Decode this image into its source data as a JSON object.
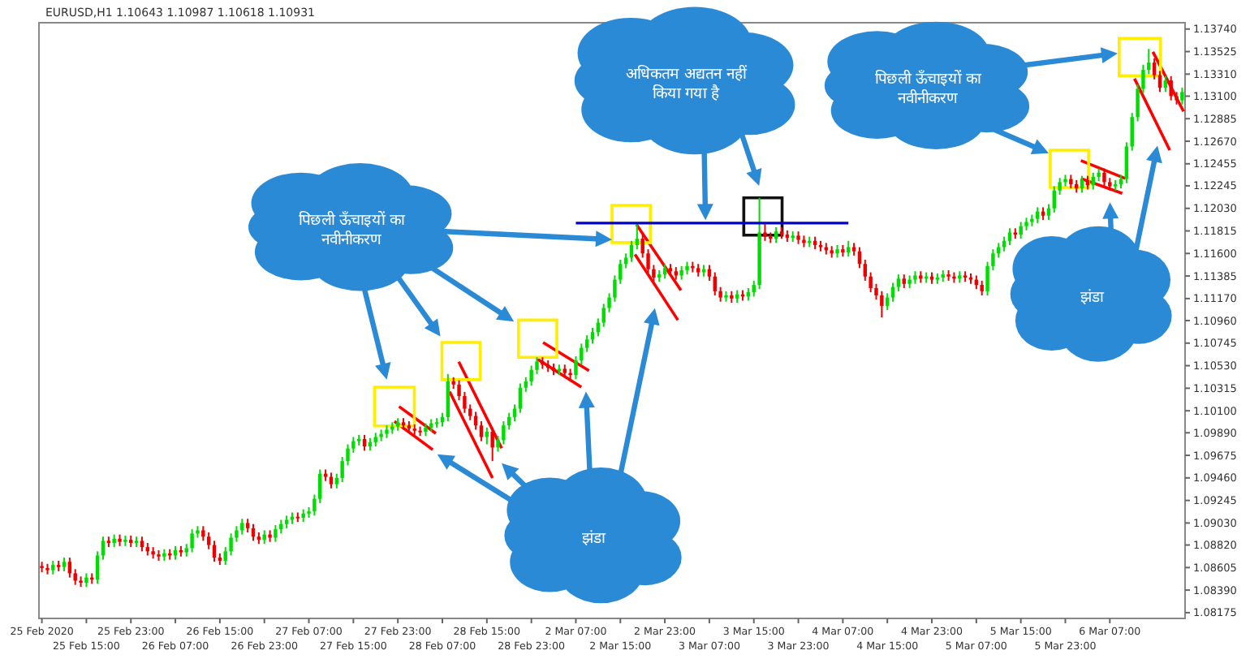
{
  "chart_data": {
    "type": "candlestick",
    "title": "EURUSD,H1  1.10643 1.10987 1.10618 1.10931",
    "categories": [
      "25 Feb 2020",
      null,
      null,
      null,
      null,
      null,
      null,
      null,
      "25 Feb 15:00",
      null,
      null,
      null,
      null,
      null,
      null,
      null,
      "25 Feb 23:00",
      null,
      null,
      null,
      null,
      null,
      null,
      null,
      "26 Feb 07:00",
      null,
      null,
      null,
      null,
      null,
      null,
      null,
      "26 Feb 15:00",
      null,
      null,
      null,
      null,
      null,
      null,
      null,
      "26 Feb 23:00",
      null,
      null,
      null,
      null,
      null,
      null,
      null,
      "27 Feb 07:00",
      null,
      null,
      null,
      null,
      null,
      null,
      null,
      "27 Feb 15:00",
      null,
      null,
      null,
      null,
      null,
      null,
      null,
      "27 Feb 23:00",
      null,
      null,
      null,
      null,
      null,
      null,
      null,
      "28 Feb 07:00",
      null,
      null,
      null,
      null,
      null,
      null,
      null,
      "28 Feb 15:00",
      null,
      null,
      null,
      null,
      null,
      null,
      null,
      "28 Feb 23:00",
      null,
      null,
      null,
      null,
      null,
      null,
      null,
      "2 Mar 07:00",
      null,
      null,
      null,
      null,
      null,
      null,
      null,
      "2 Mar 15:00",
      null,
      null,
      null,
      null,
      null,
      null,
      null,
      "2 Mar 23:00",
      null,
      null,
      null,
      null,
      null,
      null,
      null,
      "3 Mar 07:00",
      null,
      null,
      null,
      null,
      null,
      null,
      null,
      "3 Mar 15:00",
      null,
      null,
      null,
      null,
      null,
      null,
      null,
      "3 Mar 23:00",
      null,
      null,
      null,
      null,
      null,
      null,
      null,
      "4 Mar 07:00",
      null,
      null,
      null,
      null,
      null,
      null,
      null,
      "4 Mar 15:00",
      null,
      null,
      null,
      null,
      null,
      null,
      null,
      "4 Mar 23:00",
      null,
      null,
      null,
      null,
      null,
      null,
      null,
      "5 Mar 07:00",
      null,
      null,
      null,
      null,
      null,
      null,
      null,
      "5 Mar 15:00",
      null,
      null,
      null,
      null,
      null,
      null,
      null,
      "5 Mar 23:00",
      null,
      null,
      null,
      null,
      null,
      null,
      null,
      "6 Mar 07:00",
      null,
      null,
      null,
      null,
      null,
      null,
      null,
      null,
      null,
      null,
      null,
      null,
      null
    ],
    "ohlc": [
      [
        1.0862,
        1.0866,
        1.0856,
        1.086
      ],
      [
        1.086,
        1.0864,
        1.0854,
        1.0858
      ],
      [
        1.0858,
        1.0867,
        1.0854,
        1.0863
      ],
      [
        1.0863,
        1.0867,
        1.0857,
        1.0861
      ],
      [
        1.0861,
        1.087,
        1.0857,
        1.0866
      ],
      [
        1.0866,
        1.087,
        1.0851,
        1.0855
      ],
      [
        1.0855,
        1.0859,
        1.0844,
        1.0848
      ],
      [
        1.0848,
        1.0852,
        1.0842,
        1.0846
      ],
      [
        1.0846,
        1.0855,
        1.0842,
        1.0851
      ],
      [
        1.0851,
        1.0855,
        1.0845,
        1.0849
      ],
      [
        1.0849,
        1.0876,
        1.0845,
        1.0872
      ],
      [
        1.0872,
        1.089,
        1.0868,
        1.0886
      ],
      [
        1.0886,
        1.089,
        1.088,
        1.0884
      ],
      [
        1.0884,
        1.0892,
        1.088,
        1.0888
      ],
      [
        1.0888,
        1.0892,
        1.0881,
        1.0885
      ],
      [
        1.0885,
        1.0891,
        1.0881,
        1.0887
      ],
      [
        1.0887,
        1.0891,
        1.088,
        1.0884
      ],
      [
        1.0884,
        1.089,
        1.088,
        1.0886
      ],
      [
        1.0886,
        1.089,
        1.0876,
        1.088
      ],
      [
        1.088,
        1.0884,
        1.0872,
        1.0876
      ],
      [
        1.0876,
        1.088,
        1.0869,
        1.0873
      ],
      [
        1.0873,
        1.0877,
        1.0867,
        1.0871
      ],
      [
        1.0871,
        1.0878,
        1.0867,
        1.0874
      ],
      [
        1.0874,
        1.0878,
        1.0868,
        1.0872
      ],
      [
        1.0872,
        1.0881,
        1.0868,
        1.0877
      ],
      [
        1.0877,
        1.0881,
        1.0871,
        1.0875
      ],
      [
        1.0875,
        1.0883,
        1.0871,
        1.0879
      ],
      [
        1.0879,
        1.0897,
        1.0875,
        1.0893
      ],
      [
        1.0893,
        1.09,
        1.0889,
        1.0896
      ],
      [
        1.0896,
        1.09,
        1.0886,
        1.089
      ],
      [
        1.089,
        1.0894,
        1.0878,
        1.0882
      ],
      [
        1.0882,
        1.0886,
        1.0866,
        1.087
      ],
      [
        1.087,
        1.0874,
        1.0863,
        1.0867
      ],
      [
        1.0867,
        1.088,
        1.0863,
        1.0876
      ],
      [
        1.0876,
        1.0893,
        1.0872,
        1.0889
      ],
      [
        1.0889,
        1.09,
        1.0885,
        1.0896
      ],
      [
        1.0896,
        1.0907,
        1.0892,
        1.0903
      ],
      [
        1.0903,
        1.0907,
        1.0894,
        1.0898
      ],
      [
        1.0898,
        1.0902,
        1.0886,
        1.089
      ],
      [
        1.089,
        1.0894,
        1.0883,
        1.0887
      ],
      [
        1.0887,
        1.0896,
        1.0883,
        1.0892
      ],
      [
        1.0892,
        1.0896,
        1.0885,
        1.0889
      ],
      [
        1.0889,
        1.0901,
        1.0885,
        1.0897
      ],
      [
        1.0897,
        1.0906,
        1.0893,
        1.0902
      ],
      [
        1.0902,
        1.091,
        1.0898,
        1.0906
      ],
      [
        1.0906,
        1.0913,
        1.0902,
        1.0909
      ],
      [
        1.0909,
        1.0913,
        1.0904,
        1.0908
      ],
      [
        1.0908,
        1.0916,
        1.0904,
        1.0912
      ],
      [
        1.0912,
        1.0918,
        1.0908,
        1.0914
      ],
      [
        1.0914,
        1.093,
        1.091,
        1.0926
      ],
      [
        1.0926,
        1.0954,
        1.0922,
        1.095
      ],
      [
        1.095,
        1.0954,
        1.0943,
        1.0947
      ],
      [
        1.0947,
        1.0951,
        1.0936,
        1.094
      ],
      [
        1.094,
        1.095,
        1.0936,
        1.0946
      ],
      [
        1.0946,
        1.0966,
        1.0942,
        1.0962
      ],
      [
        1.0962,
        1.0978,
        1.0958,
        1.0974
      ],
      [
        1.0974,
        1.0985,
        1.097,
        1.0981
      ],
      [
        1.0981,
        1.0987,
        1.0977,
        1.0983
      ],
      [
        1.0983,
        1.0987,
        1.0972,
        1.0976
      ],
      [
        1.0976,
        1.0984,
        1.0972,
        1.098
      ],
      [
        1.098,
        1.0989,
        1.0976,
        1.0985
      ],
      [
        1.0985,
        1.0992,
        1.0981,
        1.0988
      ],
      [
        1.0988,
        1.0996,
        1.0984,
        1.0992
      ],
      [
        1.0992,
        1.0999,
        1.0988,
        1.0995
      ],
      [
        1.0995,
        1.1003,
        1.0991,
        1.0999
      ],
      [
        1.0999,
        1.1003,
        1.0992,
        1.0996
      ],
      [
        1.0996,
        1.1,
        1.0989,
        1.0993
      ],
      [
        1.0993,
        1.0997,
        1.0987,
        1.0991
      ],
      [
        1.0991,
        1.0995,
        1.0986,
        1.099
      ],
      [
        1.099,
        1.0998,
        1.0986,
        1.0994
      ],
      [
        1.0994,
        1.1002,
        1.099,
        1.0998
      ],
      [
        1.0998,
        1.1003,
        1.0994,
        1.0999
      ],
      [
        1.0999,
        1.1008,
        1.0995,
        1.1004
      ],
      [
        1.1004,
        1.1045,
        1.1,
        1.1038
      ],
      [
        1.1038,
        1.1042,
        1.1031,
        1.1035
      ],
      [
        1.1035,
        1.1039,
        1.102,
        1.1024
      ],
      [
        1.1024,
        1.1028,
        1.1008,
        1.1012
      ],
      [
        1.1012,
        1.1016,
        1.1001,
        1.1005
      ],
      [
        1.1005,
        1.1009,
        1.0992,
        1.0996
      ],
      [
        1.0996,
        1.1,
        1.0981,
        1.0985
      ],
      [
        1.0985,
        1.0994,
        1.0978,
        1.099
      ],
      [
        1.099,
        1.0994,
        1.0962,
        1.0975
      ],
      [
        1.0975,
        1.0986,
        1.0971,
        1.0982
      ],
      [
        1.0982,
        1.1,
        1.0978,
        1.0996
      ],
      [
        1.0996,
        1.1008,
        1.0992,
        1.1004
      ],
      [
        1.1004,
        1.1016,
        1.1,
        1.1012
      ],
      [
        1.1012,
        1.1036,
        1.1008,
        1.1032
      ],
      [
        1.1032,
        1.1042,
        1.1028,
        1.1038
      ],
      [
        1.1038,
        1.1053,
        1.1034,
        1.1049
      ],
      [
        1.1049,
        1.1061,
        1.1045,
        1.1057
      ],
      [
        1.1057,
        1.1061,
        1.105,
        1.1054
      ],
      [
        1.1054,
        1.1058,
        1.1047,
        1.1051
      ],
      [
        1.1051,
        1.1055,
        1.1044,
        1.1048
      ],
      [
        1.1048,
        1.1054,
        1.1044,
        1.105
      ],
      [
        1.105,
        1.1054,
        1.1042,
        1.1046
      ],
      [
        1.1046,
        1.105,
        1.104,
        1.1044
      ],
      [
        1.1044,
        1.1062,
        1.104,
        1.1058
      ],
      [
        1.1058,
        1.1074,
        1.1054,
        1.107
      ],
      [
        1.107,
        1.1082,
        1.1066,
        1.1078
      ],
      [
        1.1078,
        1.1089,
        1.1074,
        1.1085
      ],
      [
        1.1085,
        1.1098,
        1.1081,
        1.1094
      ],
      [
        1.1094,
        1.1112,
        1.109,
        1.1108
      ],
      [
        1.1108,
        1.1122,
        1.1104,
        1.1118
      ],
      [
        1.1118,
        1.1139,
        1.1114,
        1.1135
      ],
      [
        1.1135,
        1.1154,
        1.1131,
        1.115
      ],
      [
        1.115,
        1.116,
        1.1146,
        1.1156
      ],
      [
        1.1156,
        1.1172,
        1.1152,
        1.1168
      ],
      [
        1.1168,
        1.1189,
        1.1164,
        1.1174
      ],
      [
        1.1174,
        1.1178,
        1.1156,
        1.116
      ],
      [
        1.116,
        1.1164,
        1.1141,
        1.1145
      ],
      [
        1.1145,
        1.1149,
        1.1133,
        1.1137
      ],
      [
        1.1137,
        1.1144,
        1.1133,
        1.114
      ],
      [
        1.114,
        1.115,
        1.1136,
        1.1146
      ],
      [
        1.1146,
        1.115,
        1.1139,
        1.1143
      ],
      [
        1.1143,
        1.1147,
        1.1135,
        1.1139
      ],
      [
        1.1139,
        1.1148,
        1.1135,
        1.1144
      ],
      [
        1.1144,
        1.1152,
        1.114,
        1.1148
      ],
      [
        1.1148,
        1.1152,
        1.1142,
        1.1146
      ],
      [
        1.1146,
        1.115,
        1.1138,
        1.1142
      ],
      [
        1.1142,
        1.1149,
        1.1138,
        1.1145
      ],
      [
        1.1145,
        1.1149,
        1.1134,
        1.1138
      ],
      [
        1.1138,
        1.1142,
        1.112,
        1.1124
      ],
      [
        1.1124,
        1.1128,
        1.1114,
        1.1118
      ],
      [
        1.1118,
        1.1124,
        1.1114,
        1.112
      ],
      [
        1.112,
        1.1124,
        1.1113,
        1.1117
      ],
      [
        1.1117,
        1.1125,
        1.1113,
        1.1121
      ],
      [
        1.1121,
        1.1125,
        1.1115,
        1.1119
      ],
      [
        1.1119,
        1.1127,
        1.1115,
        1.1123
      ],
      [
        1.1123,
        1.1134,
        1.1119,
        1.113
      ],
      [
        1.113,
        1.1213,
        1.1126,
        1.118
      ],
      [
        1.118,
        1.1188,
        1.1172,
        1.1176
      ],
      [
        1.1176,
        1.118,
        1.117,
        1.1174
      ],
      [
        1.1174,
        1.1185,
        1.117,
        1.1181
      ],
      [
        1.1181,
        1.1185,
        1.1174,
        1.1178
      ],
      [
        1.1178,
        1.1182,
        1.1171,
        1.1175
      ],
      [
        1.1175,
        1.1181,
        1.1171,
        1.1177
      ],
      [
        1.1177,
        1.1181,
        1.1169,
        1.1173
      ],
      [
        1.1173,
        1.1177,
        1.1166,
        1.117
      ],
      [
        1.117,
        1.1176,
        1.1166,
        1.1172
      ],
      [
        1.1172,
        1.1176,
        1.1164,
        1.1168
      ],
      [
        1.1168,
        1.1172,
        1.1162,
        1.1166
      ],
      [
        1.1166,
        1.117,
        1.1159,
        1.1163
      ],
      [
        1.1163,
        1.1167,
        1.1156,
        1.116
      ],
      [
        1.116,
        1.1168,
        1.1156,
        1.1164
      ],
      [
        1.1164,
        1.1168,
        1.1157,
        1.1161
      ],
      [
        1.1161,
        1.1172,
        1.1157,
        1.1166
      ],
      [
        1.1166,
        1.117,
        1.1158,
        1.1162
      ],
      [
        1.1162,
        1.1166,
        1.1146,
        1.115
      ],
      [
        1.115,
        1.1154,
        1.1134,
        1.1138
      ],
      [
        1.1138,
        1.1142,
        1.1123,
        1.1127
      ],
      [
        1.1127,
        1.1131,
        1.1116,
        1.112
      ],
      [
        1.112,
        1.1124,
        1.1099,
        1.111
      ],
      [
        1.111,
        1.1122,
        1.1106,
        1.1118
      ],
      [
        1.1118,
        1.1132,
        1.1114,
        1.1128
      ],
      [
        1.1128,
        1.114,
        1.1124,
        1.1136
      ],
      [
        1.1136,
        1.114,
        1.1127,
        1.1131
      ],
      [
        1.1131,
        1.1139,
        1.1127,
        1.1135
      ],
      [
        1.1135,
        1.1143,
        1.1131,
        1.1139
      ],
      [
        1.1139,
        1.1143,
        1.1132,
        1.1136
      ],
      [
        1.1136,
        1.1142,
        1.1132,
        1.1138
      ],
      [
        1.1138,
        1.1142,
        1.1131,
        1.1135
      ],
      [
        1.1135,
        1.1141,
        1.1131,
        1.1137
      ],
      [
        1.1137,
        1.1144,
        1.1133,
        1.114
      ],
      [
        1.114,
        1.1144,
        1.1134,
        1.1138
      ],
      [
        1.1138,
        1.1142,
        1.1132,
        1.1136
      ],
      [
        1.1136,
        1.1143,
        1.1132,
        1.1139
      ],
      [
        1.1139,
        1.1143,
        1.1133,
        1.1137
      ],
      [
        1.1137,
        1.1141,
        1.1131,
        1.1135
      ],
      [
        1.1135,
        1.1139,
        1.1126,
        1.113
      ],
      [
        1.113,
        1.1134,
        1.112,
        1.1124
      ],
      [
        1.1124,
        1.1152,
        1.112,
        1.1148
      ],
      [
        1.1148,
        1.1164,
        1.1144,
        1.116
      ],
      [
        1.116,
        1.117,
        1.1156,
        1.1166
      ],
      [
        1.1166,
        1.1176,
        1.1162,
        1.1172
      ],
      [
        1.1172,
        1.1184,
        1.1168,
        1.118
      ],
      [
        1.118,
        1.1184,
        1.1174,
        1.1178
      ],
      [
        1.1178,
        1.119,
        1.1174,
        1.1186
      ],
      [
        1.1186,
        1.1194,
        1.1182,
        1.119
      ],
      [
        1.119,
        1.1197,
        1.1186,
        1.1193
      ],
      [
        1.1193,
        1.1204,
        1.1189,
        1.12
      ],
      [
        1.12,
        1.1204,
        1.1192,
        1.1196
      ],
      [
        1.1196,
        1.1207,
        1.1192,
        1.1203
      ],
      [
        1.1203,
        1.1224,
        1.1199,
        1.122
      ],
      [
        1.122,
        1.1232,
        1.1216,
        1.1228
      ],
      [
        1.1228,
        1.1235,
        1.1224,
        1.1231
      ],
      [
        1.1231,
        1.1235,
        1.1222,
        1.1226
      ],
      [
        1.1226,
        1.123,
        1.1218,
        1.1222
      ],
      [
        1.1222,
        1.1234,
        1.1218,
        1.123
      ],
      [
        1.123,
        1.1234,
        1.1221,
        1.1225
      ],
      [
        1.1225,
        1.1237,
        1.1221,
        1.1233
      ],
      [
        1.1233,
        1.1241,
        1.1229,
        1.1237
      ],
      [
        1.1237,
        1.1241,
        1.1224,
        1.1228
      ],
      [
        1.1228,
        1.1232,
        1.122,
        1.1224
      ],
      [
        1.1224,
        1.123,
        1.122,
        1.1226
      ],
      [
        1.1226,
        1.1235,
        1.1222,
        1.1231
      ],
      [
        1.1231,
        1.1266,
        1.1227,
        1.1262
      ],
      [
        1.1262,
        1.1294,
        1.1258,
        1.129
      ],
      [
        1.129,
        1.1321,
        1.1286,
        1.1317
      ],
      [
        1.1317,
        1.134,
        1.1313,
        1.1335
      ],
      [
        1.1335,
        1.1355,
        1.1331,
        1.1342
      ],
      [
        1.1342,
        1.1346,
        1.1326,
        1.133
      ],
      [
        1.133,
        1.1334,
        1.1314,
        1.1318
      ],
      [
        1.1318,
        1.1329,
        1.1314,
        1.1325
      ],
      [
        1.1325,
        1.1329,
        1.1306,
        1.131
      ],
      [
        1.131,
        1.1314,
        1.1302,
        1.1306
      ],
      [
        1.1306,
        1.1318,
        1.1302,
        1.1314
      ]
    ],
    "series": [
      {
        "type": "line",
        "color": "#0000cc",
        "values": [
          null,
          null,
          null,
          null,
          null,
          null,
          null,
          null,
          null,
          null,
          null,
          null,
          null,
          null,
          null,
          null,
          null,
          null,
          null,
          null,
          null,
          null,
          null,
          null,
          null,
          null,
          null,
          null,
          null,
          null,
          null,
          null,
          null,
          null,
          null,
          null,
          null,
          null,
          null,
          null,
          null,
          null,
          null,
          null,
          null,
          null,
          null,
          null,
          null,
          null,
          null,
          null,
          null,
          null,
          null,
          null,
          null,
          null,
          null,
          null,
          null,
          null,
          null,
          null,
          null,
          null,
          null,
          null,
          null,
          null,
          null,
          null,
          null,
          null,
          null,
          null,
          null,
          null,
          null,
          null,
          null,
          null,
          null,
          null,
          null,
          null,
          null,
          null,
          null,
          null,
          null,
          null,
          null,
          null,
          null,
          null,
          1.1189,
          1.1189,
          1.1189,
          1.1189,
          1.1189,
          1.1189,
          1.1189,
          1.1189,
          1.1189,
          1.1189,
          1.1189,
          1.1189,
          1.1189,
          1.1189,
          1.1189,
          1.1189,
          1.1189,
          1.1189,
          1.1189,
          1.1189,
          1.1189,
          1.1189,
          1.1189,
          1.1189,
          1.1189,
          1.1189,
          1.1189,
          1.1189,
          1.1189,
          1.1189,
          1.1189,
          1.1189,
          1.1189,
          1.1189,
          1.1189,
          1.1189,
          1.1189,
          1.1189,
          1.1189,
          1.1189,
          1.1189,
          1.1189,
          1.1189,
          1.1189,
          1.1189,
          1.1189,
          1.1189,
          1.1189,
          1.1189,
          1.1189,
          null,
          null,
          null,
          null,
          null,
          null,
          null,
          null,
          null,
          null,
          null,
          null,
          null,
          null,
          null,
          null,
          null,
          null,
          null,
          null,
          null,
          null,
          null,
          null,
          null,
          null,
          null,
          null,
          null,
          null,
          null,
          null,
          null,
          null,
          null,
          null,
          null,
          null,
          null,
          null,
          null,
          null,
          null,
          null,
          null,
          null,
          null,
          null,
          null,
          null,
          null,
          null,
          null,
          null,
          null,
          null,
          null,
          null,
          null,
          null
        ]
      }
    ],
    "ylim": [
      1.0812,
      1.138
    ],
    "yticks": [
      {
        "value": 1.1374,
        "label": "1.13740"
      },
      {
        "value": 1.13525,
        "label": "1.13525"
      },
      {
        "value": 1.1331,
        "label": "1.13310"
      },
      {
        "value": 1.131,
        "label": "1.13100"
      },
      {
        "value": 1.12885,
        "label": "1.12885"
      },
      {
        "value": 1.1267,
        "label": "1.12670"
      },
      {
        "value": 1.12455,
        "label": "1.12455"
      },
      {
        "value": 1.12245,
        "label": "1.12245"
      },
      {
        "value": 1.1203,
        "label": "1.12030"
      },
      {
        "value": 1.11815,
        "label": "1.11815"
      },
      {
        "value": 1.116,
        "label": "1.11600"
      },
      {
        "value": 1.11385,
        "label": "1.11385"
      },
      {
        "value": 1.1117,
        "label": "1.11170"
      },
      {
        "value": 1.1096,
        "label": "1.10960"
      },
      {
        "value": 1.10745,
        "label": "1.10745"
      },
      {
        "value": 1.1053,
        "label": "1.10530"
      },
      {
        "value": 1.10315,
        "label": "1.10315"
      },
      {
        "value": 1.101,
        "label": "1.10100"
      },
      {
        "value": 1.0989,
        "label": "1.09890"
      },
      {
        "value": 1.09675,
        "label": "1.09675"
      },
      {
        "value": 1.0946,
        "label": "1.09460"
      },
      {
        "value": 1.09245,
        "label": "1.09245"
      },
      {
        "value": 1.0903,
        "label": "1.09030"
      },
      {
        "value": 1.0882,
        "label": "1.08820"
      },
      {
        "value": 1.08605,
        "label": "1.08605"
      },
      {
        "value": 1.0839,
        "label": "1.08390"
      },
      {
        "value": 1.08175,
        "label": "1.08175"
      }
    ],
    "annotations": [
      "पिछली ऊँचाइयों का नवीनीकरण",
      "अधिकतम अद्यतन नहीं किया गया है",
      "पिछली ऊँचाइयों का नवीनीकरण",
      "झंडा",
      "झंडा"
    ]
  }
}
